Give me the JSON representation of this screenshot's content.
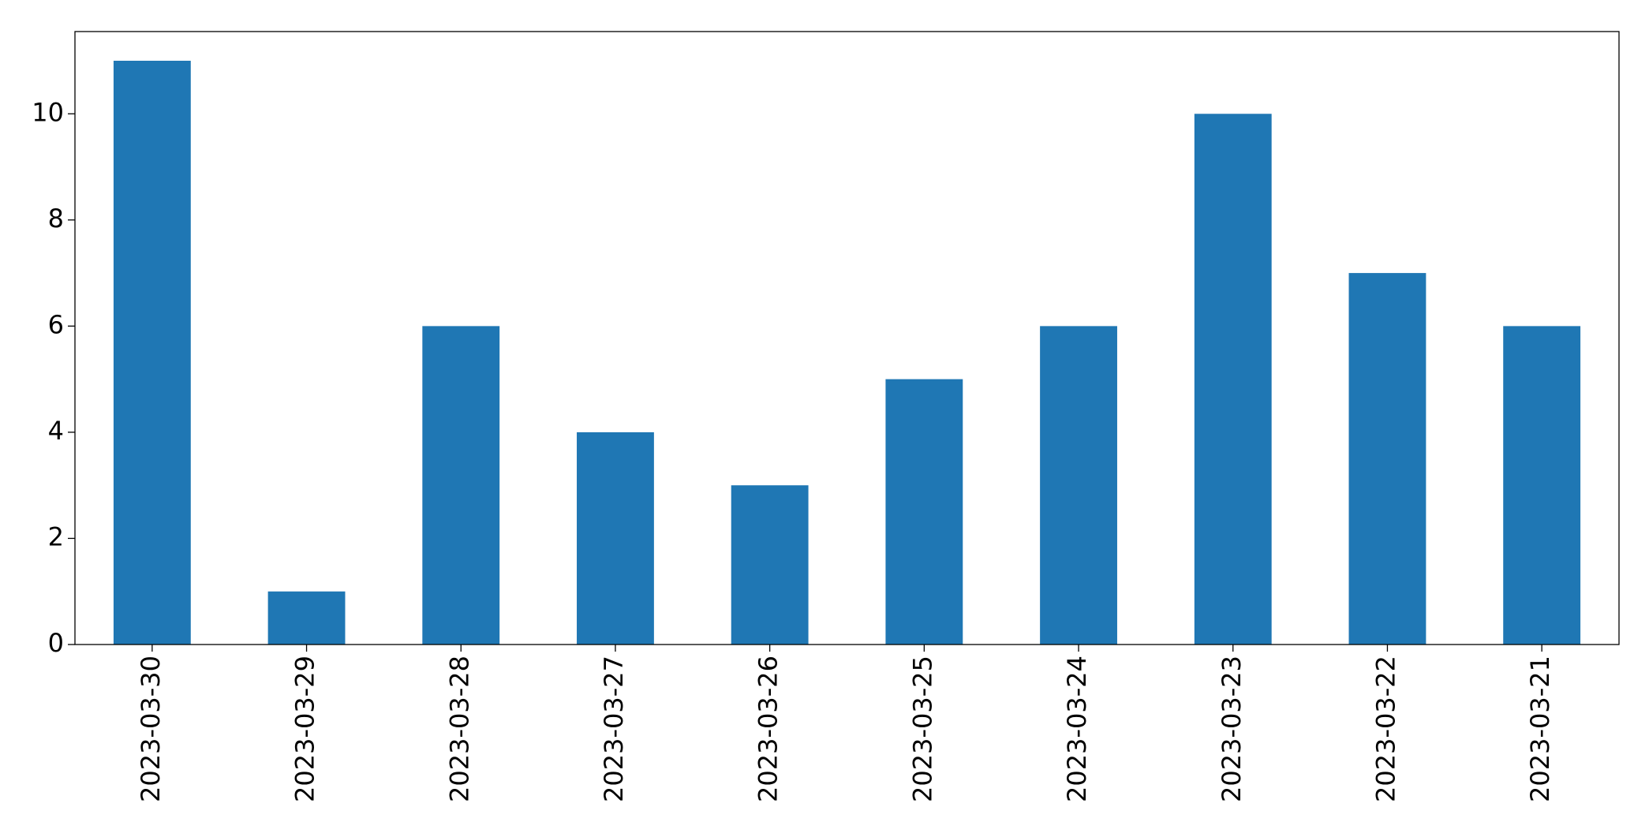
{
  "chart_data": {
    "type": "bar",
    "categories": [
      "2023-03-30",
      "2023-03-29",
      "2023-03-28",
      "2023-03-27",
      "2023-03-26",
      "2023-03-25",
      "2023-03-24",
      "2023-03-23",
      "2023-03-22",
      "2023-03-21"
    ],
    "values": [
      11,
      1,
      6,
      4,
      3,
      5,
      6,
      10,
      7,
      6
    ],
    "color": "#1f77b4",
    "ylim": [
      0,
      11.55
    ],
    "yticks": [
      0,
      2,
      4,
      6,
      8,
      10
    ],
    "grid": false
  }
}
